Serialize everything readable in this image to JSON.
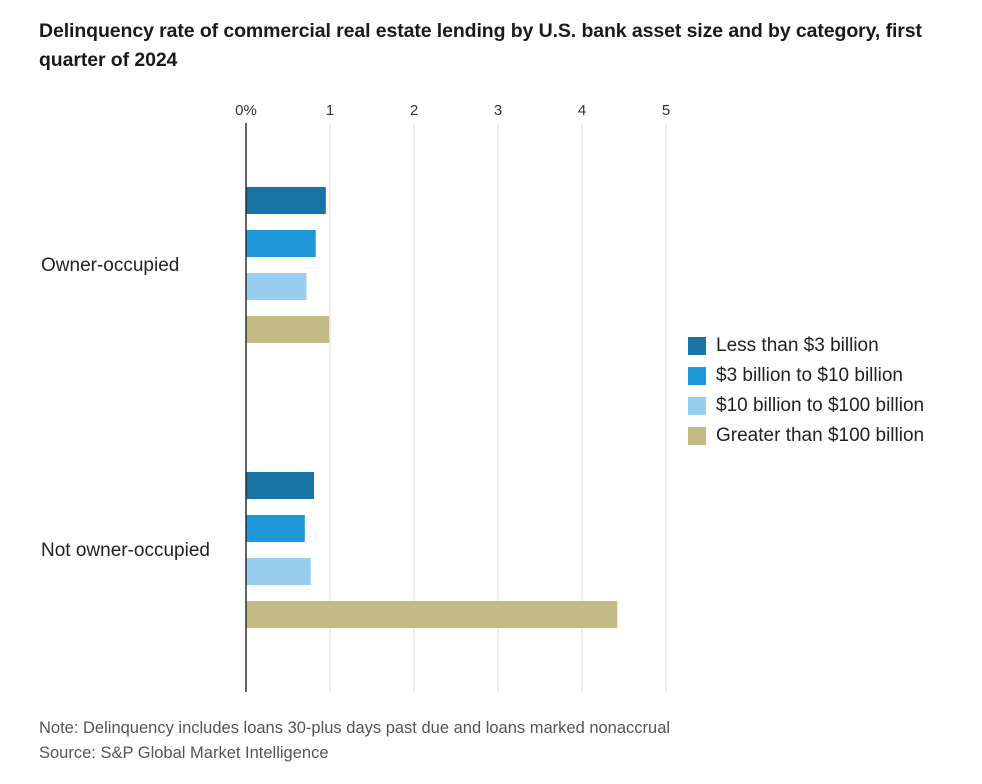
{
  "title": "Delinquency rate of commercial real estate lending by U.S. bank asset size and by category, first quarter of 2024",
  "note": "Note: Delinquency includes loans 30-plus days past due and loans marked nonaccrual",
  "source": "Source: S&P Global Market Intelligence",
  "chart_data": {
    "type": "bar",
    "orientation": "horizontal",
    "title": "Delinquency rate of commercial real estate lending by U.S. bank asset size and by category, first quarter of 2024",
    "categories": [
      "Owner-occupied",
      "Not owner-occupied"
    ],
    "x_ticks": [
      "0%",
      "1",
      "2",
      "3",
      "4",
      "5"
    ],
    "xlim": [
      0,
      5
    ],
    "grid": true,
    "legend_position": "right",
    "series": [
      {
        "name": "Less than $3 billion",
        "color": "#1874a5",
        "values": [
          0.95,
          0.81
        ]
      },
      {
        "name": "$3 billion to $10 billion",
        "color": "#1e98d8",
        "values": [
          0.83,
          0.7
        ]
      },
      {
        "name": "$10 billion to $100 billion",
        "color": "#98cdee",
        "values": [
          0.72,
          0.77
        ]
      },
      {
        "name": "Greater than $100 billion",
        "color": "#c2bb86",
        "values": [
          0.99,
          4.42
        ]
      }
    ]
  }
}
